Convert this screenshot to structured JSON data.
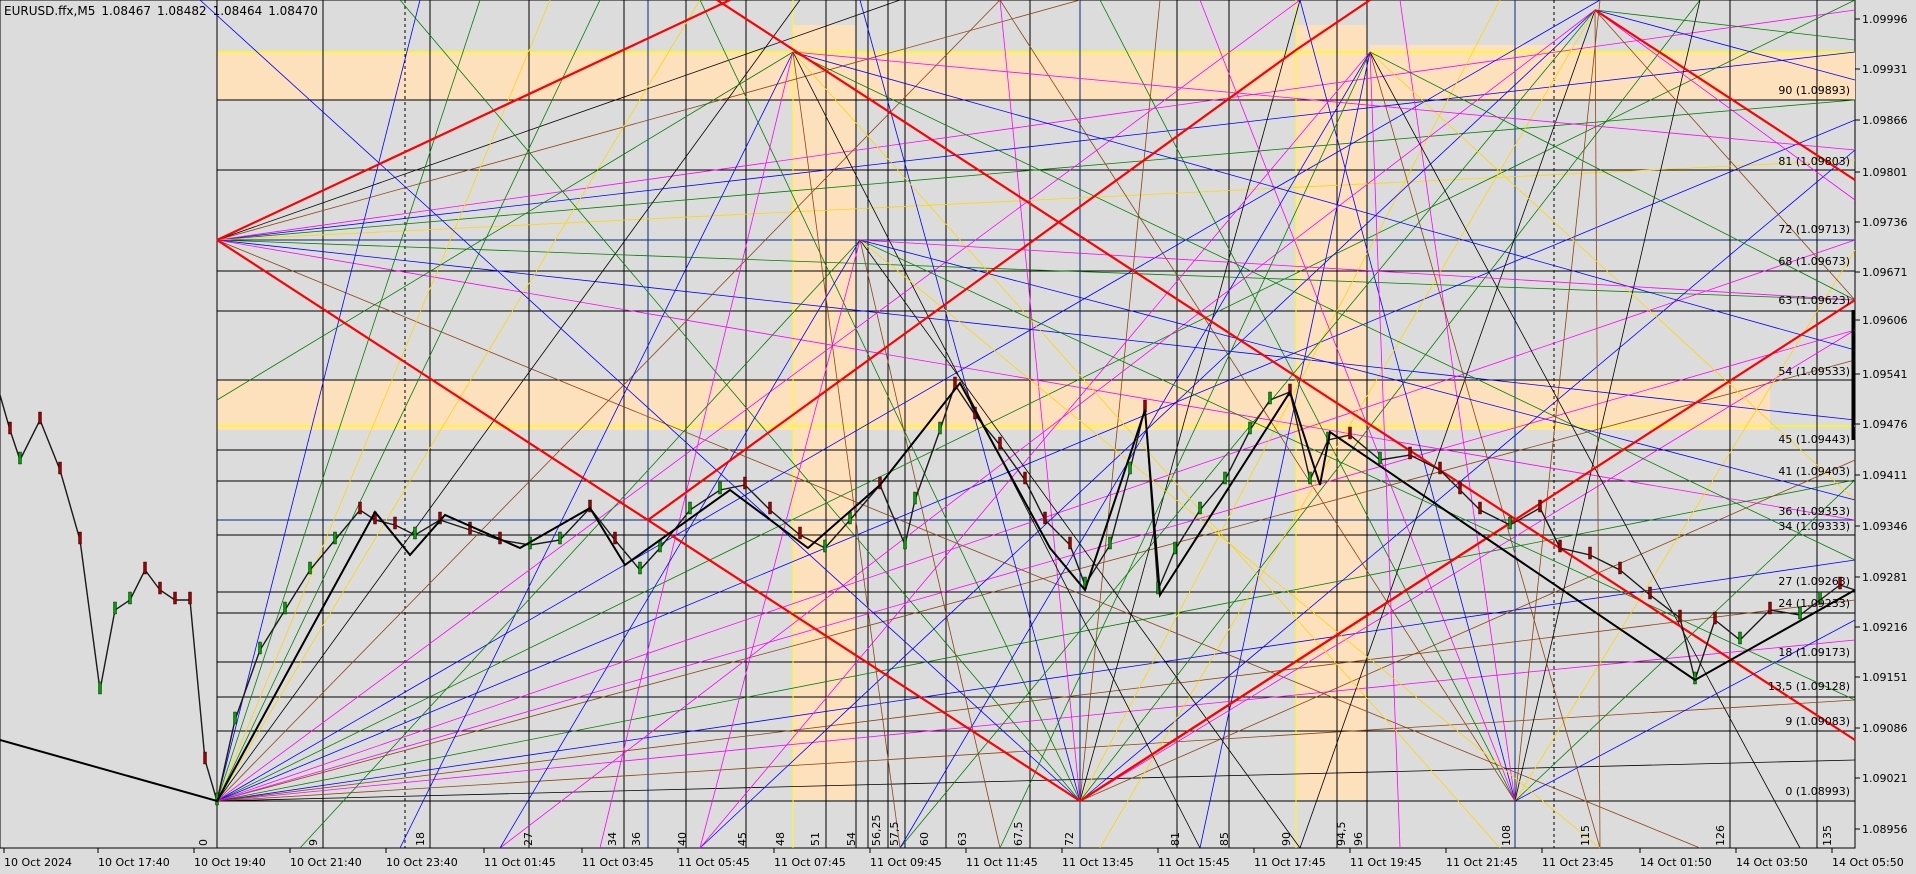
{
  "symbol_info": {
    "symbol": "EURUSD.ffx,M5",
    "open": "1.08467",
    "high": "1.08482",
    "low": "1.08464",
    "close": "1.08470"
  },
  "colors": {
    "background": "#dcdcdc",
    "zone_fill": "#fde0bc",
    "red_fan": "#ff0000",
    "yellow_level": "#ffff00",
    "navy_level": "#002a7f"
  },
  "price_axis": [
    "1.09996",
    "1.09931",
    "1.09866",
    "1.09801",
    "1.09736",
    "1.09671",
    "1.09606",
    "1.09541",
    "1.09476",
    "1.09411",
    "1.09346",
    "1.09281",
    "1.09216",
    "1.09151",
    "1.09086",
    "1.09021",
    "1.08956"
  ],
  "time_axis": [
    "10 Oct 2024",
    "10 Oct 17:40",
    "10 Oct 19:40",
    "10 Oct 21:40",
    "10 Oct 23:40",
    "11 Oct 01:45",
    "11 Oct 03:45",
    "11 Oct 05:45",
    "11 Oct 07:45",
    "11 Oct 09:45",
    "11 Oct 11:45",
    "11 Oct 13:45",
    "11 Oct 15:45",
    "11 Oct 17:45",
    "11 Oct 19:45",
    "11 Oct 21:45",
    "11 Oct 23:45",
    "14 Oct 01:50",
    "14 Oct 03:50",
    "14 Oct 05:50"
  ],
  "gann_levels": [
    "90 (1.09893)",
    "81 (1.09803)",
    "72 (1.09713)",
    "68 (1.09673)",
    "63 (1.09623)",
    "54 (1.09533)",
    "45 (1.09443)",
    "41 (1.09403)",
    "36 (1.09353)",
    "34 (1.09333)",
    "27 (1.09263)",
    "24 (1.09233)",
    "18 (1.09173)",
    "13,5 (1.09128)",
    "9 (1.09083)",
    "0 (1.08993)"
  ],
  "time_counts": [
    "0",
    "9",
    "18",
    "27",
    "34",
    "36",
    "40",
    "45",
    "48",
    "51",
    "54",
    "56,25",
    "57,5",
    "60",
    "63",
    "67,5",
    "72",
    "81",
    "85",
    "90",
    "94,5",
    "96",
    "108",
    "115",
    "126",
    "135"
  ]
}
